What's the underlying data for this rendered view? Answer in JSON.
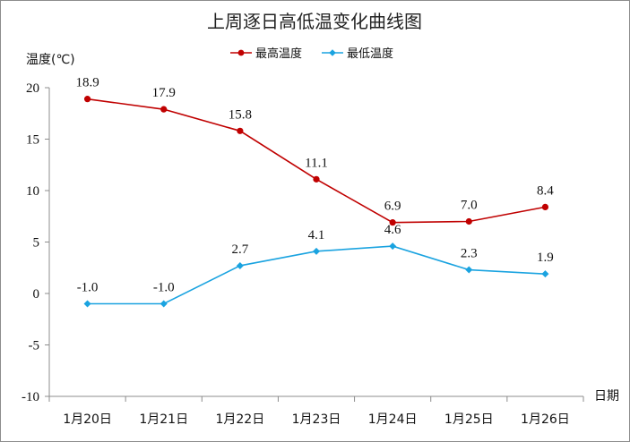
{
  "chart_data": {
    "type": "line",
    "title": "上周逐日高低温变化曲线图",
    "ylabel": "温度(℃)",
    "xlabel": "日期",
    "categories": [
      "1月20日",
      "1月21日",
      "1月22日",
      "1月23日",
      "1月24日",
      "1月25日",
      "1月26日"
    ],
    "ylim": [
      -10,
      20
    ],
    "yticks": [
      -10,
      -5,
      0,
      5,
      10,
      15,
      20
    ],
    "legend_position": "top",
    "grid": false,
    "series": [
      {
        "name": "最高温度",
        "color": "#c00000",
        "marker": "circle",
        "values": [
          18.9,
          17.9,
          15.8,
          11.1,
          6.9,
          7.0,
          8.4
        ],
        "labels": [
          "18.9",
          "17.9",
          "15.8",
          "11.1",
          "6.9",
          "7.0",
          "8.4"
        ]
      },
      {
        "name": "最低温度",
        "color": "#1aa3e0",
        "marker": "diamond",
        "values": [
          -1.0,
          -1.0,
          2.7,
          4.1,
          4.6,
          2.3,
          1.9
        ],
        "labels": [
          "-1.0",
          "-1.0",
          "2.7",
          "4.1",
          "4.6",
          "2.3",
          "1.9"
        ]
      }
    ]
  }
}
